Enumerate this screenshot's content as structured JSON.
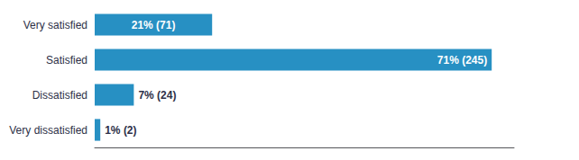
{
  "chart_data": {
    "type": "bar",
    "orientation": "horizontal",
    "categories": [
      "Very satisfied",
      "Satisfied",
      "Dissatisfied",
      "Very dissatisfied"
    ],
    "values": [
      21,
      71,
      7,
      1
    ],
    "value_labels": [
      "21% (71)",
      "71% (245)",
      "7% (24)",
      "1% (2)"
    ],
    "color": "#2790C3",
    "xlim": [
      0,
      75
    ],
    "grid": false,
    "data_labels": true,
    "tick_labels": "y"
  }
}
